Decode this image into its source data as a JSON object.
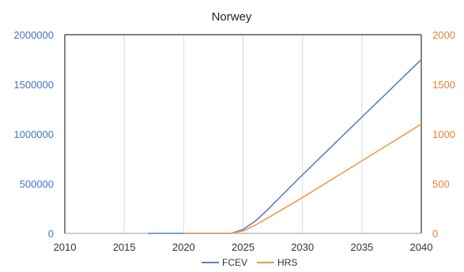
{
  "chart_data": {
    "type": "line",
    "title": "Norwey",
    "xlabel": "",
    "ylabel": "",
    "xlim": [
      2010,
      2040
    ],
    "xticks": [
      2010,
      2015,
      2020,
      2025,
      2030,
      2035,
      2040
    ],
    "y_left": {
      "lim": [
        0,
        2000000
      ],
      "ticks": [
        0,
        500000,
        1000000,
        1500000,
        2000000
      ]
    },
    "y_right": {
      "lim": [
        0,
        2000
      ],
      "ticks": [
        0,
        500,
        1000,
        1500,
        2000
      ]
    },
    "grid": "vertical",
    "legend": "bottom",
    "series": [
      {
        "name": "FCEV",
        "axis": "left",
        "color": "#5b7fc6",
        "x": [
          2017,
          2020,
          2024,
          2025,
          2026,
          2027,
          2028,
          2030,
          2035,
          2040
        ],
        "y": [
          0,
          0,
          0,
          40000,
          120000,
          230000,
          350000,
          590000,
          1170000,
          1750000
        ]
      },
      {
        "name": "HRS",
        "axis": "right",
        "color": "#f0994a",
        "x": [
          2020,
          2024,
          2025,
          2026,
          2028,
          2030,
          2035,
          2040
        ],
        "y": [
          0,
          0,
          25,
          80,
          220,
          360,
          730,
          1100
        ]
      }
    ]
  }
}
